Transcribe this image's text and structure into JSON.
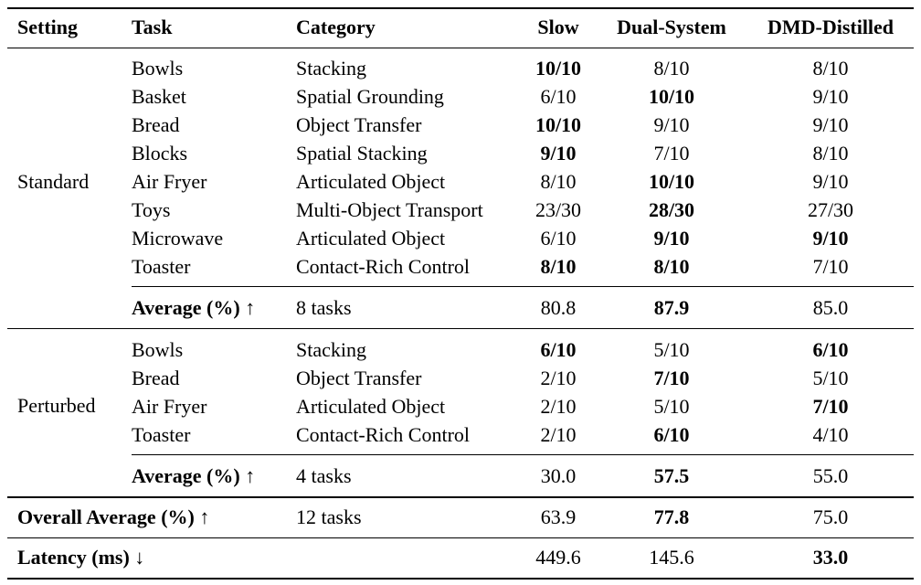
{
  "header": {
    "setting": "Setting",
    "task": "Task",
    "category": "Category",
    "slow": "Slow",
    "dual": "Dual-System",
    "dmd": "DMD-Distilled"
  },
  "standard": {
    "label": "Standard",
    "rows": [
      {
        "task": "Bowls",
        "category": "Stacking",
        "slow": "10/10",
        "dual": "8/10",
        "dmd": "8/10"
      },
      {
        "task": "Basket",
        "category": "Spatial Grounding",
        "slow": "6/10",
        "dual": "10/10",
        "dmd": "9/10"
      },
      {
        "task": "Bread",
        "category": "Object Transfer",
        "slow": "10/10",
        "dual": "9/10",
        "dmd": "9/10"
      },
      {
        "task": "Blocks",
        "category": "Spatial Stacking",
        "slow": "9/10",
        "dual": "7/10",
        "dmd": "8/10"
      },
      {
        "task": "Air Fryer",
        "category": "Articulated Object",
        "slow": "8/10",
        "dual": "10/10",
        "dmd": "9/10"
      },
      {
        "task": "Toys",
        "category": "Multi-Object Transport",
        "slow": "23/30",
        "dual": "28/30",
        "dmd": "27/30"
      },
      {
        "task": "Microwave",
        "category": "Articulated Object",
        "slow": "6/10",
        "dual": "9/10",
        "dmd": "9/10"
      },
      {
        "task": "Toaster",
        "category": "Contact-Rich Control",
        "slow": "8/10",
        "dual": "8/10",
        "dmd": "7/10"
      }
    ],
    "average": {
      "label": "Average (%) ↑",
      "category": "8 tasks",
      "slow": "80.8",
      "dual": "87.9",
      "dmd": "85.0"
    }
  },
  "perturbed": {
    "label": "Perturbed",
    "rows": [
      {
        "task": "Bowls",
        "category": "Stacking",
        "slow": "6/10",
        "dual": "5/10",
        "dmd": "6/10"
      },
      {
        "task": "Bread",
        "category": "Object Transfer",
        "slow": "2/10",
        "dual": "7/10",
        "dmd": "5/10"
      },
      {
        "task": "Air Fryer",
        "category": "Articulated Object",
        "slow": "2/10",
        "dual": "5/10",
        "dmd": "7/10"
      },
      {
        "task": "Toaster",
        "category": "Contact-Rich Control",
        "slow": "2/10",
        "dual": "6/10",
        "dmd": "4/10"
      }
    ],
    "average": {
      "label": "Average (%) ↑",
      "category": "4 tasks",
      "slow": "30.0",
      "dual": "57.5",
      "dmd": "55.0"
    }
  },
  "overall": {
    "label": "Overall Average (%) ↑",
    "category": "12 tasks",
    "slow": "63.9",
    "dual": "77.8",
    "dmd": "75.0"
  },
  "latency": {
    "label": "Latency (ms) ↓",
    "slow": "449.6",
    "dual": "145.6",
    "dmd": "33.0"
  }
}
